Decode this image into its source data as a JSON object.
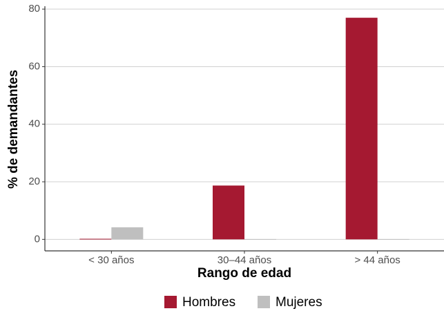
{
  "chart_data": {
    "type": "bar",
    "categories": [
      "< 30 años",
      "30–44 años",
      "> 44 años"
    ],
    "series": [
      {
        "name": "Hombres",
        "color": "#a51931",
        "values": [
          0.2,
          18.7,
          77
        ]
      },
      {
        "name": "Mujeres",
        "color": "#bfbfbf",
        "values": [
          4.2,
          0.1,
          0.1
        ]
      }
    ],
    "xlabel": "Rango de edad",
    "ylabel": "% de demandantes",
    "ylim": [
      -4,
      81
    ],
    "yticks": [
      0,
      20,
      40,
      60,
      80
    ],
    "grid": true,
    "legend": "bottom"
  }
}
